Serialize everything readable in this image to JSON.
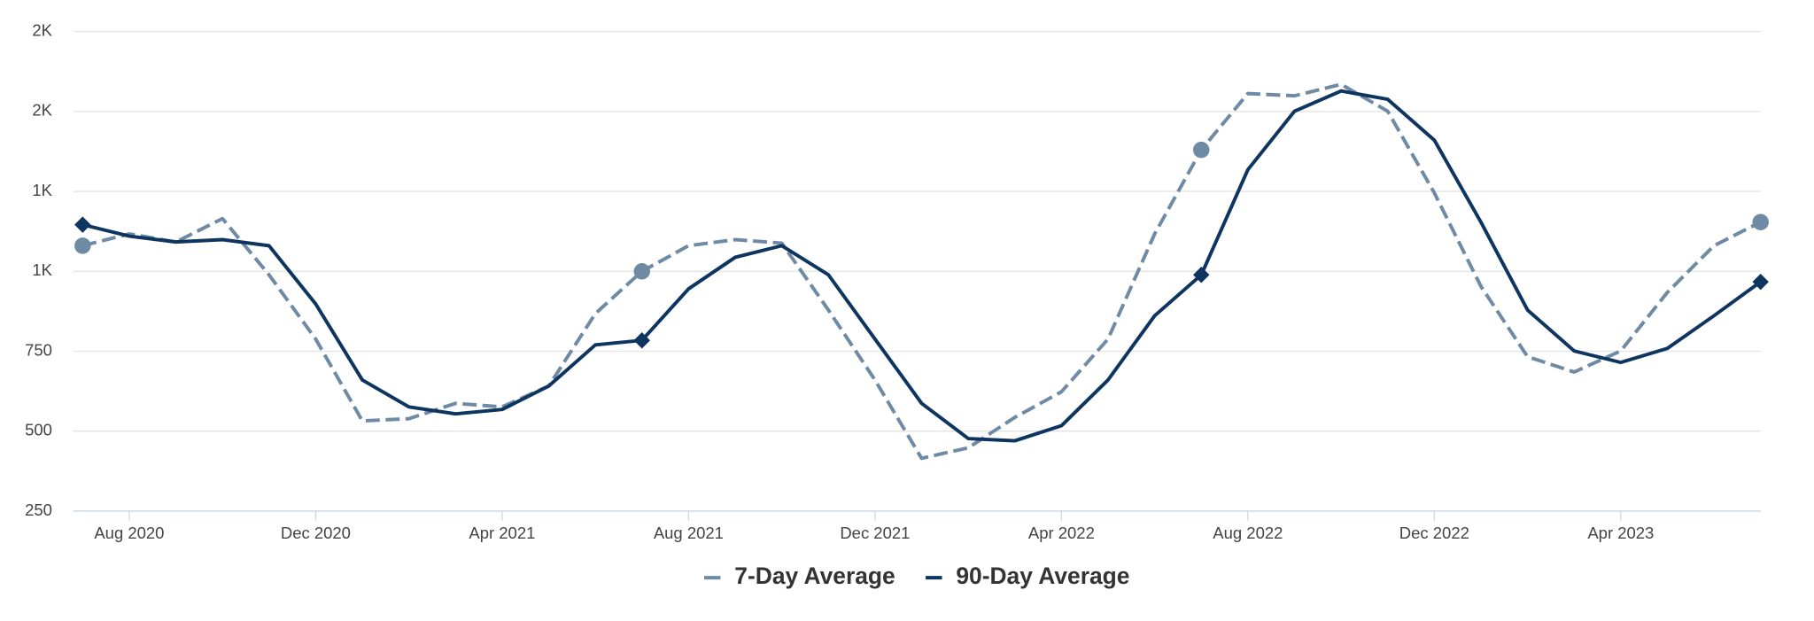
{
  "chart_data": {
    "type": "line",
    "x": [
      "2020-07",
      "2020-08",
      "2020-09",
      "2020-10",
      "2020-11",
      "2020-12",
      "2021-01",
      "2021-02",
      "2021-03",
      "2021-04",
      "2021-05",
      "2021-06",
      "2021-07",
      "2021-08",
      "2021-09",
      "2021-10",
      "2021-11",
      "2021-12",
      "2022-01",
      "2022-02",
      "2022-03",
      "2022-04",
      "2022-05",
      "2022-06",
      "2022-07",
      "2022-08",
      "2022-09",
      "2022-10",
      "2022-11",
      "2022-12",
      "2023-01",
      "2023-02",
      "2023-03",
      "2023-04",
      "2023-05",
      "2023-06",
      "2023-07"
    ],
    "series": [
      {
        "name": "7-Day Average",
        "color": "#6f8aa5",
        "dashed": true,
        "marker": "circle",
        "values": [
          1080,
          1117,
          1092,
          1165,
          989,
          788,
          532,
          539,
          587,
          576,
          641,
          868,
          1000,
          1080,
          1099,
          1088,
          879,
          660,
          415,
          448,
          543,
          623,
          788,
          1117,
          1380,
          1556,
          1549,
          1585,
          1501,
          1245,
          953,
          733,
          685,
          751,
          934,
          1080,
          1154
        ]
      },
      {
        "name": "90-Day Average",
        "color": "#0d3560",
        "dashed": false,
        "marker": "diamond",
        "values": [
          1146,
          1110,
          1092,
          1099,
          1080,
          898,
          660,
          576,
          554,
          568,
          641,
          770,
          784,
          945,
          1044,
          1080,
          989,
          788,
          587,
          477,
          470,
          517,
          660,
          861,
          989,
          1318,
          1501,
          1564,
          1538,
          1410,
          1154,
          879,
          751,
          715,
          759,
          861,
          967
        ]
      }
    ],
    "xlim": [
      "2020-07",
      "2023-07"
    ],
    "xticks": [
      {
        "value": "2020-08",
        "label": "Aug 2020"
      },
      {
        "value": "2020-12",
        "label": "Dec 2020"
      },
      {
        "value": "2021-04",
        "label": "Apr 2021"
      },
      {
        "value": "2021-08",
        "label": "Aug 2021"
      },
      {
        "value": "2021-12",
        "label": "Dec 2021"
      },
      {
        "value": "2022-04",
        "label": "Apr 2022"
      },
      {
        "value": "2022-08",
        "label": "Aug 2022"
      },
      {
        "value": "2022-12",
        "label": "Dec 2022"
      },
      {
        "value": "2023-04",
        "label": "Apr 2023"
      }
    ],
    "ylim": [
      250,
      1750
    ],
    "yticks": [
      250,
      500,
      750,
      {
        "value": 1000,
        "label": "1K"
      },
      {
        "value": 1250,
        "label": "1K"
      },
      {
        "value": 1500,
        "label": "2K"
      },
      {
        "value": 1750,
        "label": "2K"
      }
    ],
    "grid": true,
    "legend": "bottom"
  }
}
